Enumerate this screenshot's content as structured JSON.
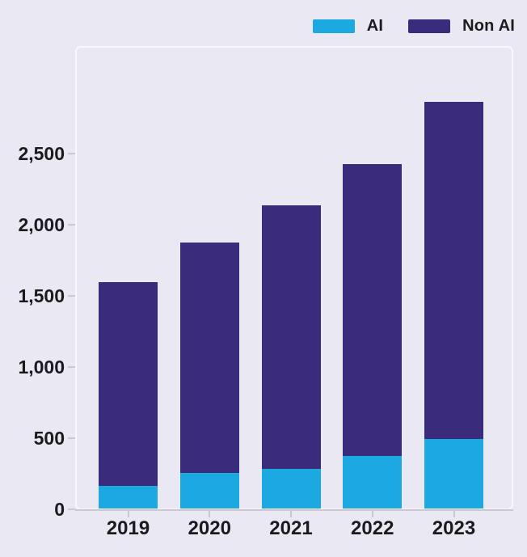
{
  "chart_data": {
    "type": "bar",
    "stacked": true,
    "categories": [
      "2019",
      "2020",
      "2021",
      "2022",
      "2023"
    ],
    "series": [
      {
        "name": "AI",
        "color": "#1CA8E0",
        "values": [
          160,
          250,
          280,
          370,
          490
        ]
      },
      {
        "name": "Non AI",
        "color": "#3A2B7D",
        "values": [
          1430,
          1620,
          1850,
          2050,
          2370
        ]
      }
    ],
    "totals": [
      1590,
      1870,
      2130,
      2420,
      2860
    ],
    "ylim": [
      0,
      3100
    ],
    "yticks": [
      {
        "value": 0,
        "label": "0"
      },
      {
        "value": 500,
        "label": "500"
      },
      {
        "value": 1000,
        "label": "1,000"
      },
      {
        "value": 1500,
        "label": "1,500"
      },
      {
        "value": 2000,
        "label": "2,000"
      },
      {
        "value": 2500,
        "label": "2,500"
      }
    ],
    "grid": false,
    "legend_position": "top-right"
  },
  "colors": {
    "background": "#EAE8F2",
    "axis_line": "#C9C7D2",
    "plot_border": "#F8F7FB",
    "text": "#1B1B1E"
  }
}
